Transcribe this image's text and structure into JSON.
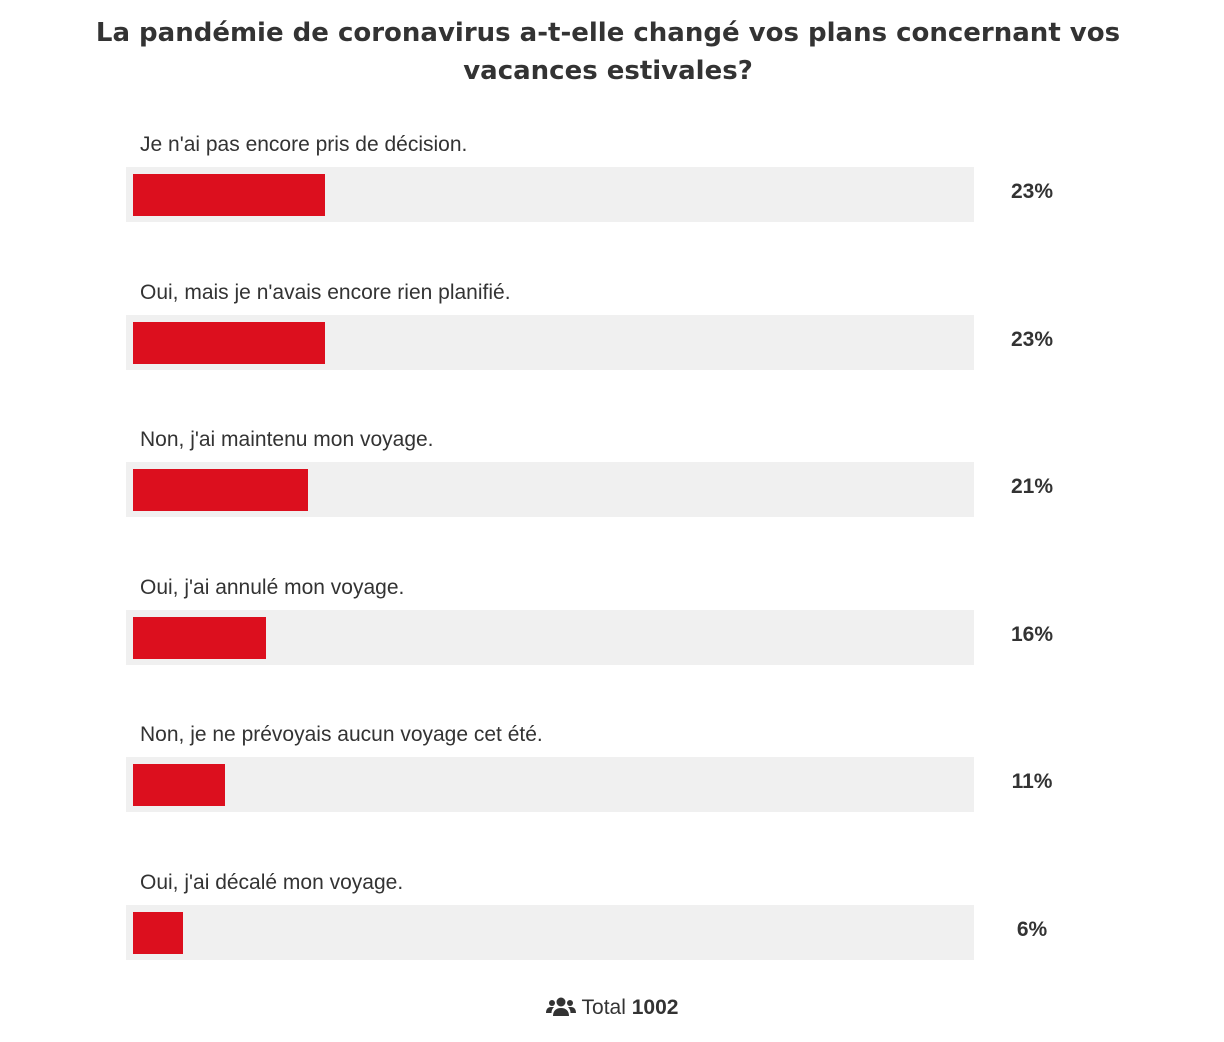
{
  "chart_data": {
    "type": "bar",
    "orientation": "horizontal",
    "title": "La pandémie de coronavirus a-t-elle changé vos plans concernant vos vacances estivales?",
    "categories": [
      "Je n'ai pas encore pris de décision.",
      "Oui, mais je n'avais encore rien planifié.",
      "Non, j'ai maintenu mon voyage.",
      "Oui, j'ai annulé mon voyage.",
      "Non, je ne prévoyais aucun voyage cet été.",
      "Oui, j'ai décalé mon voyage."
    ],
    "values": [
      23,
      23,
      21,
      16,
      11,
      6
    ],
    "value_labels": [
      "23%",
      "23%",
      "21%",
      "16%",
      "11%",
      "6%"
    ],
    "xlim": [
      0,
      100
    ],
    "bar_color": "#dc0f1e",
    "track_color": "#f0f0f0"
  },
  "footer": {
    "icon": "users-icon",
    "total_label": "Total",
    "total_value": "1002"
  }
}
